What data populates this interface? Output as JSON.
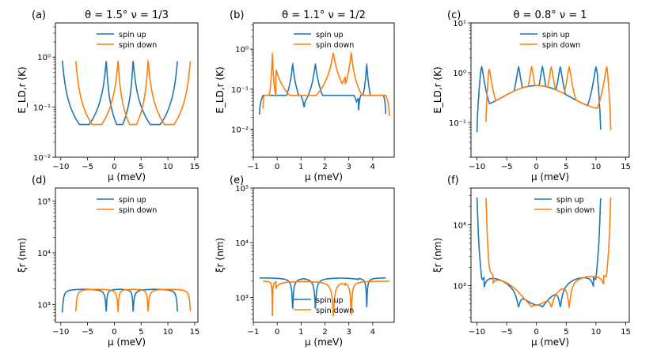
{
  "figure": {
    "colors": {
      "spin_up": "#1f77b4",
      "spin_down": "#ff7f0e"
    }
  },
  "chart_data": [
    {
      "type": "line",
      "panel": "(a)",
      "title": "θ = 1.5° ν = 1/3",
      "xlabel": "μ (meV)",
      "ylabel": "E_LD,r (K)",
      "yscale": "log",
      "xlim": [
        -11,
        15.6
      ],
      "ylim": [
        0.01,
        4.8
      ],
      "xticks": [
        -10,
        -5,
        0,
        5,
        10,
        15
      ],
      "xtick_labels": [
        "−10",
        "−5",
        "0",
        "5",
        "10",
        "15"
      ],
      "yticks": [
        0.01,
        0.1,
        1
      ],
      "ytick_labels": [
        "10⁻²",
        "10⁻¹",
        "10⁰"
      ],
      "legend_loc": "top-center",
      "curve_model": "band",
      "series": [
        {
          "name": "spin up",
          "color": "#1f77b4",
          "bands": [
            [
              -9.7,
              -1.5
            ],
            [
              -1.5,
              3.5
            ],
            [
              3.5,
              11.8
            ]
          ],
          "peak": 0.85,
          "floor": 0.045,
          "edge": 0.012
        },
        {
          "name": "spin down",
          "color": "#ff7f0e",
          "bands": [
            [
              -7.2,
              0.7
            ],
            [
              0.7,
              6.3
            ],
            [
              6.3,
              14.2
            ]
          ],
          "peak": 0.85,
          "floor": 0.045,
          "edge": 0.012
        }
      ]
    },
    {
      "type": "line",
      "panel": "(b)",
      "title": "θ = 1.1° ν = 1/2",
      "xlabel": "μ (meV)",
      "ylabel": "E_LD,r (K)",
      "yscale": "log",
      "xlim": [
        -1.0,
        4.9
      ],
      "ylim": [
        0.002,
        4.5
      ],
      "xticks": [
        -1,
        0,
        1,
        2,
        3,
        4
      ],
      "xtick_labels": [
        "−1",
        "0",
        "1",
        "2",
        "3",
        "4"
      ],
      "yticks": [
        0.01,
        0.1,
        1
      ],
      "ytick_labels": [
        "10⁻²",
        "10⁻¹",
        "10⁰"
      ],
      "legend_loc": "top-center",
      "curve_model": "band",
      "series": [
        {
          "name": "spin up",
          "color": "#1f77b4",
          "bands": [
            [
              -0.75,
              1.15
            ],
            [
              1.15,
              3.4
            ],
            [
              3.4,
              4.55
            ]
          ],
          "peaks": [
            0.65,
            1.6,
            3.75
          ],
          "peak": 0.42,
          "floor": 0.07,
          "edge": 0.016
        },
        {
          "name": "spin down",
          "color": "#ff7f0e",
          "bands": [
            [
              -0.6,
              -0.05
            ],
            [
              -0.05,
              2.85
            ],
            [
              2.85,
              4.7
            ]
          ],
          "peaks": [
            -0.2,
            2.35,
            3.1
          ],
          "peak": 0.8,
          "floor": 0.07,
          "edge": 0.016
        }
      ]
    },
    {
      "type": "line",
      "panel": "(c)",
      "title": "θ = 0.8° ν = 1",
      "xlabel": "μ (meV)",
      "ylabel": "E_LD,r (K)",
      "yscale": "log",
      "xlim": [
        -11,
        15.6
      ],
      "ylim": [
        0.02,
        10
      ],
      "xticks": [
        -10,
        -5,
        0,
        5,
        10,
        15
      ],
      "xtick_labels": [
        "−10",
        "−5",
        "0",
        "5",
        "10",
        "15"
      ],
      "yticks": [
        0.1,
        1,
        10
      ],
      "ytick_labels": [
        "10⁻¹",
        "10⁰",
        "10¹"
      ],
      "legend_loc": "top-center",
      "curve_model": "flatband",
      "series": [
        {
          "name": "spin up",
          "color": "#1f77b4",
          "range": [
            -10.0,
            10.8
          ],
          "peaks": [
            -9.2,
            -3.0,
            1.0,
            4.0,
            10.0
          ],
          "base": 0.17,
          "center": 0.55
        },
        {
          "name": "spin down",
          "color": "#ff7f0e",
          "range": [
            -8.5,
            12.5
          ],
          "peaks": [
            -8.0,
            -0.8,
            2.5,
            5.5,
            11.8
          ],
          "base": 0.17,
          "center": 0.55
        }
      ]
    },
    {
      "type": "line",
      "panel": "(d)",
      "title": "",
      "xlabel": "μ (meV)",
      "ylabel": "ξr (nm)",
      "yscale": "log",
      "xlim": [
        -11,
        15.6
      ],
      "ylim": [
        450,
        180000
      ],
      "xticks": [
        -10,
        -5,
        0,
        5,
        10,
        15
      ],
      "xtick_labels": [
        "−10",
        "−5",
        "0",
        "5",
        "10",
        "15"
      ],
      "yticks": [
        1000,
        10000,
        100000
      ],
      "ytick_labels": [
        "10³",
        "10⁴",
        "10⁵"
      ],
      "legend_loc": "top-center",
      "curve_model": "xi",
      "series": [
        {
          "name": "spin up",
          "color": "#1f77b4",
          "bands": [
            [
              -9.7,
              -1.5
            ],
            [
              -1.5,
              3.5
            ],
            [
              3.5,
              11.8
            ]
          ],
          "peak": 700,
          "floor": 2000,
          "edge": 68000
        },
        {
          "name": "spin down",
          "color": "#ff7f0e",
          "bands": [
            [
              -7.2,
              0.7
            ],
            [
              0.7,
              6.3
            ],
            [
              6.3,
              14.2
            ]
          ],
          "peak": 700,
          "floor": 2000,
          "edge": 68000
        }
      ]
    },
    {
      "type": "line",
      "panel": "(e)",
      "title": "",
      "xlabel": "μ (meV)",
      "ylabel": "ξr (nm)",
      "yscale": "log",
      "xlim": [
        -1.0,
        4.9
      ],
      "ylim": [
        350,
        100000
      ],
      "xticks": [
        -1,
        0,
        1,
        2,
        3,
        4
      ],
      "xtick_labels": [
        "−1",
        "0",
        "1",
        "2",
        "3",
        "4"
      ],
      "yticks": [
        1000,
        10000,
        100000
      ],
      "ytick_labels": [
        "10³",
        "10⁴",
        "10⁵"
      ],
      "legend_loc": "bottom-center",
      "curve_model": "xi",
      "series": [
        {
          "name": "spin up",
          "color": "#1f77b4",
          "bands": [
            [
              -0.75,
              1.15
            ],
            [
              1.15,
              3.4
            ],
            [
              3.4,
              4.55
            ]
          ],
          "peaks": [
            0.65,
            1.6,
            3.75
          ],
          "peak": 600,
          "floor": 2300,
          "edge": 25000
        },
        {
          "name": "spin down",
          "color": "#ff7f0e",
          "bands": [
            [
              -0.6,
              -0.05
            ],
            [
              -0.05,
              2.85
            ],
            [
              2.85,
              4.7
            ]
          ],
          "peaks": [
            -0.2,
            2.35,
            3.1
          ],
          "peak": 450,
          "floor": 2000,
          "edge": 30000
        }
      ]
    },
    {
      "type": "line",
      "panel": "(f)",
      "title": "",
      "xlabel": "μ (meV)",
      "ylabel": "ξr (nm)",
      "yscale": "log",
      "xlim": [
        -11,
        15.6
      ],
      "ylim": [
        250,
        40000
      ],
      "xticks": [
        -10,
        -5,
        0,
        5,
        10,
        15
      ],
      "xtick_labels": [
        "−10",
        "−5",
        "0",
        "5",
        "10",
        "15"
      ],
      "yticks": [
        1000,
        10000
      ],
      "ytick_labels": [
        "10³",
        "10⁴"
      ],
      "legend_loc": "top-right",
      "curve_model": "xiflat",
      "series": [
        {
          "name": "spin up",
          "color": "#1f77b4",
          "range": [
            -10.0,
            10.8
          ],
          "dips": [
            -9.2,
            -3.0,
            1.0,
            4.0,
            10.0
          ],
          "base": 1600,
          "center": 500,
          "edge": 28000
        },
        {
          "name": "spin down",
          "color": "#ff7f0e",
          "range": [
            -8.5,
            12.5
          ],
          "dips": [
            -8.0,
            -0.8,
            2.5,
            5.5,
            11.8
          ],
          "base": 1600,
          "center": 500,
          "edge": 28000
        }
      ]
    }
  ],
  "labels": {
    "spin_up": "spin up",
    "spin_down": "spin down",
    "xlabel": "μ (meV)"
  }
}
